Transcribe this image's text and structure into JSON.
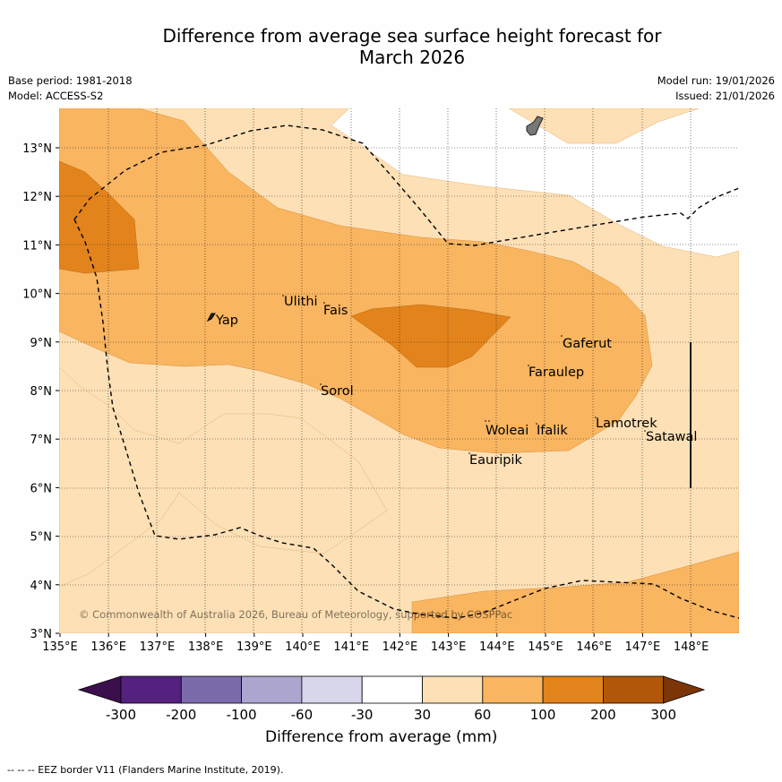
{
  "title_line1": "Difference from average sea surface height forecast for",
  "title_line2": "March 2026",
  "meta_left": [
    "Base period: 1981-2018",
    "Model: ACCESS-S2"
  ],
  "meta_right": [
    "Model run: 19/01/2026",
    "Issued: 21/01/2026"
  ],
  "copyright": "© Commonwealth of Australia 2026, Bureau of Meteorology, supported by COSPPac",
  "colorbar": {
    "title": "Difference from average (mm)",
    "ticks": [
      "-300",
      "-200",
      "-100",
      "-60",
      "-30",
      "30",
      "60",
      "100",
      "200",
      "300"
    ],
    "colors": [
      "#3b0f4d",
      "#54217f",
      "#7c6bab",
      "#aca6cf",
      "#d8d6ea",
      "#ffffff",
      "#fde0b6",
      "#f9b560",
      "#e3831b",
      "#b15709",
      "#7b3506"
    ]
  },
  "footer": "--  --  -- EEZ border V11 (Flanders Marine Institute, 2019).",
  "chart_data": {
    "type": "map",
    "lon_range": [
      135,
      149
    ],
    "lat_range": [
      3,
      13.8
    ],
    "xticks": [
      "135°E",
      "136°E",
      "137°E",
      "138°E",
      "139°E",
      "140°E",
      "141°E",
      "142°E",
      "143°E",
      "144°E",
      "145°E",
      "146°E",
      "147°E",
      "148°E"
    ],
    "yticks": [
      "3°N",
      "4°N",
      "5°N",
      "6°N",
      "7°N",
      "8°N",
      "9°N",
      "10°N",
      "11°N",
      "12°N",
      "13°N"
    ],
    "places": [
      {
        "name": "Yap",
        "lon": 138.25,
        "lat": 9.45
      },
      {
        "name": "Ulithi",
        "lon": 139.65,
        "lat": 9.85
      },
      {
        "name": "Fais",
        "lon": 140.5,
        "lat": 9.7
      },
      {
        "name": "Gaferut",
        "lon": 145.4,
        "lat": 9.0
      },
      {
        "name": "Faraulep",
        "lon": 144.7,
        "lat": 8.45
      },
      {
        "name": "Sorol",
        "lon": 140.35,
        "lat": 8.05
      },
      {
        "name": "Woleai",
        "lon": 143.8,
        "lat": 7.2
      },
      {
        "name": "Ifalik",
        "lon": 144.7,
        "lat": 7.2
      },
      {
        "name": "Lamotrek",
        "lon": 146.0,
        "lat": 7.35
      },
      {
        "name": "Satawal",
        "lon": 147.0,
        "lat": 7.05
      },
      {
        "name": "Eauripik",
        "lon": 143.45,
        "lat": 6.6
      }
    ]
  }
}
